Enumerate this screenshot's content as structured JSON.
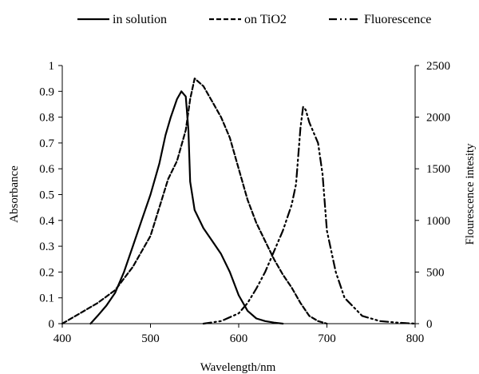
{
  "chart_data": {
    "type": "line",
    "xlabel": "Wavelength/nm",
    "ylabel_left": "Absorbance",
    "ylabel_right": "Flourescence intesity",
    "xlim": [
      400,
      800
    ],
    "ylim_left": [
      0,
      1
    ],
    "ylim_right": [
      0,
      2500
    ],
    "x_ticks": [
      "400",
      "500",
      "600",
      "700",
      "800"
    ],
    "y_left_ticks": [
      "0",
      "0.1",
      "0.2",
      "0.3",
      "0.4",
      "0.5",
      "0.6",
      "0.7",
      "0.8",
      "0.9",
      "1"
    ],
    "y_right_ticks": [
      "0",
      "500",
      "1000",
      "1500",
      "2000",
      "2500"
    ],
    "grid": false,
    "legend_position": "top",
    "series": [
      {
        "name": "in solution",
        "axis": "left",
        "style": "solid",
        "color": "#000000",
        "points": [
          [
            432,
            0
          ],
          [
            440,
            0.03
          ],
          [
            450,
            0.07
          ],
          [
            460,
            0.12
          ],
          [
            470,
            0.2
          ],
          [
            480,
            0.3
          ],
          [
            490,
            0.4
          ],
          [
            500,
            0.5
          ],
          [
            510,
            0.62
          ],
          [
            517,
            0.73
          ],
          [
            523,
            0.8
          ],
          [
            530,
            0.87
          ],
          [
            535,
            0.9
          ],
          [
            540,
            0.88
          ],
          [
            543,
            0.75
          ],
          [
            545,
            0.55
          ],
          [
            550,
            0.44
          ],
          [
            560,
            0.37
          ],
          [
            570,
            0.32
          ],
          [
            580,
            0.27
          ],
          [
            590,
            0.2
          ],
          [
            600,
            0.11
          ],
          [
            610,
            0.05
          ],
          [
            620,
            0.02
          ],
          [
            630,
            0.01
          ],
          [
            640,
            0.004
          ],
          [
            650,
            0
          ]
        ]
      },
      {
        "name": "on TiO2",
        "axis": "left",
        "style": "dashed",
        "color": "#000000",
        "points": [
          [
            400,
            0
          ],
          [
            420,
            0.04
          ],
          [
            440,
            0.08
          ],
          [
            460,
            0.13
          ],
          [
            480,
            0.22
          ],
          [
            500,
            0.34
          ],
          [
            510,
            0.45
          ],
          [
            520,
            0.56
          ],
          [
            530,
            0.63
          ],
          [
            540,
            0.75
          ],
          [
            545,
            0.87
          ],
          [
            550,
            0.95
          ],
          [
            560,
            0.92
          ],
          [
            570,
            0.86
          ],
          [
            580,
            0.8
          ],
          [
            590,
            0.72
          ],
          [
            600,
            0.6
          ],
          [
            610,
            0.48
          ],
          [
            620,
            0.39
          ],
          [
            630,
            0.32
          ],
          [
            640,
            0.25
          ],
          [
            650,
            0.19
          ],
          [
            660,
            0.14
          ],
          [
            670,
            0.08
          ],
          [
            680,
            0.03
          ],
          [
            690,
            0.01
          ],
          [
            700,
            0
          ]
        ]
      },
      {
        "name": "Fluorescence",
        "axis": "right",
        "style": "dashdotdot",
        "color": "#000000",
        "points": [
          [
            560,
            0
          ],
          [
            580,
            25
          ],
          [
            600,
            100
          ],
          [
            610,
            200
          ],
          [
            620,
            340
          ],
          [
            630,
            500
          ],
          [
            640,
            700
          ],
          [
            650,
            900
          ],
          [
            660,
            1150
          ],
          [
            665,
            1350
          ],
          [
            670,
            1900
          ],
          [
            673,
            2100
          ],
          [
            676,
            2070
          ],
          [
            680,
            1950
          ],
          [
            690,
            1750
          ],
          [
            695,
            1450
          ],
          [
            700,
            900
          ],
          [
            710,
            500
          ],
          [
            720,
            250
          ],
          [
            740,
            75
          ],
          [
            760,
            25
          ],
          [
            780,
            10
          ],
          [
            800,
            0
          ]
        ]
      }
    ]
  }
}
